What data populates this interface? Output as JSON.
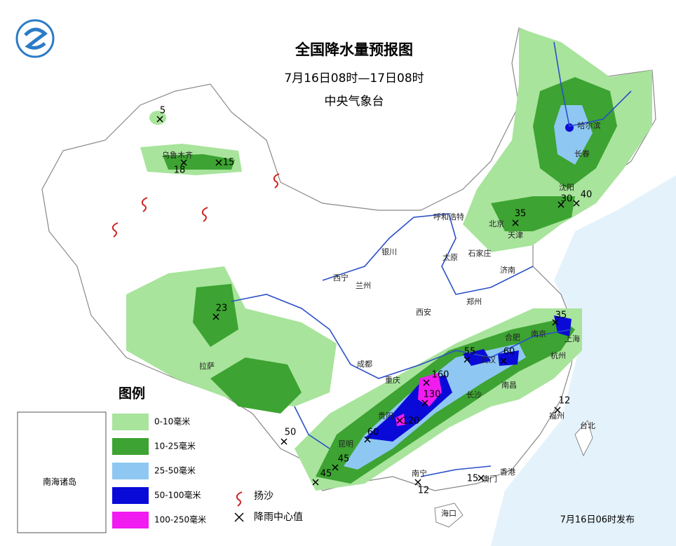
{
  "header": {
    "title": "全国降水量预报图",
    "period": "7月16日08时—17日08时",
    "issuer": "中央气象台"
  },
  "legend": {
    "title": "图例",
    "items": [
      {
        "label": "0-10毫米",
        "color": "#a8e49c"
      },
      {
        "label": "10-25毫米",
        "color": "#3da332"
      },
      {
        "label": "25-50毫米",
        "color": "#8ec8f2"
      },
      {
        "label": "50-100毫米",
        "color": "#0a0ad8"
      },
      {
        "label": "100-250毫米",
        "color": "#f01cf0"
      }
    ],
    "symbols": [
      "扬沙",
      "降雨中心值"
    ]
  },
  "inset": "南海诸岛",
  "cities": [
    "乌鲁木齐",
    "哈尔滨",
    "长春",
    "沈阳",
    "呼和浩特",
    "北京",
    "天津",
    "石家庄",
    "太原",
    "济南",
    "银川",
    "西宁",
    "兰州",
    "西安",
    "郑州",
    "合肥",
    "南京",
    "上海",
    "杭州",
    "武汉",
    "南昌",
    "长沙",
    "成都",
    "重庆",
    "贵阳",
    "昆明",
    "拉萨",
    "福州",
    "台北",
    "南宁",
    "澳门",
    "香港",
    "海口"
  ],
  "rain_centers": [
    5,
    18,
    15,
    23,
    35,
    30,
    40,
    35,
    55,
    60,
    160,
    130,
    120,
    60,
    50,
    45,
    45,
    12,
    12,
    15
  ],
  "footer": "7月16日06时发布"
}
